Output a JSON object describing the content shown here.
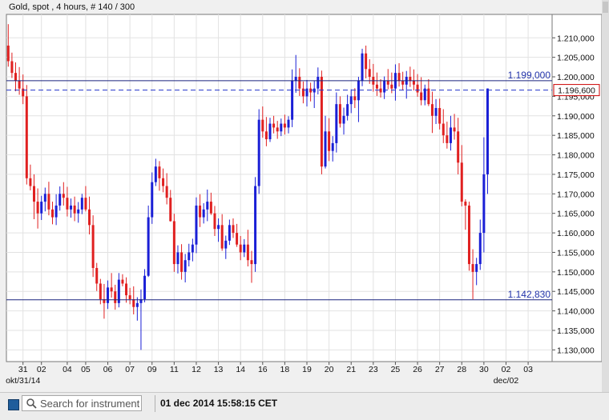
{
  "chart_title": "Gold, spot , 4 hours, # 140 / 300",
  "status_bar": {
    "search_placeholder": "Search for instrument",
    "timestamp": "01 dec 2014 15:58:15 CET"
  },
  "colors": {
    "up": "#1a1fd6",
    "down": "#e02020",
    "hline": "#1a237e",
    "bid_line": "#2233cc",
    "price_box": "#cc0000"
  },
  "chart_data": {
    "type": "candlestick",
    "title": "Gold, spot , 4 hours, # 140 / 300",
    "ylim": [
      1127,
      1216
    ],
    "y_ticks": [
      1130,
      1135,
      1140,
      1145,
      1150,
      1155,
      1160,
      1165,
      1170,
      1175,
      1180,
      1185,
      1190,
      1195,
      1200,
      1205,
      1210
    ],
    "y_tick_labels": [
      "1.130,000",
      "1.135,000",
      "1.140,000",
      "1.145,000",
      "1.150,000",
      "1.155,000",
      "1.160,000",
      "1.165,000",
      "1.170,000",
      "1.175,000",
      "1.180,000",
      "1.185,000",
      "1.190,000",
      "1.195,000",
      "1.200,000",
      "1.205,000",
      "1.210,000"
    ],
    "x_labels": [
      {
        "label": "31",
        "sub": "okt/31/14",
        "bar": 4
      },
      {
        "label": "02",
        "bar": 9
      },
      {
        "label": "04",
        "bar": 16
      },
      {
        "label": "05",
        "bar": 21
      },
      {
        "label": "06",
        "bar": 27
      },
      {
        "label": "07",
        "bar": 33
      },
      {
        "label": "09",
        "bar": 39
      },
      {
        "label": "11",
        "bar": 45
      },
      {
        "label": "12",
        "bar": 51
      },
      {
        "label": "13",
        "bar": 57
      },
      {
        "label": "14",
        "bar": 63
      },
      {
        "label": "16",
        "bar": 69
      },
      {
        "label": "18",
        "bar": 75
      },
      {
        "label": "19",
        "bar": 81
      },
      {
        "label": "20",
        "bar": 87
      },
      {
        "label": "21",
        "bar": 93
      },
      {
        "label": "23",
        "bar": 99
      },
      {
        "label": "25",
        "bar": 105
      },
      {
        "label": "26",
        "bar": 111
      },
      {
        "label": "27",
        "bar": 117
      },
      {
        "label": "28",
        "bar": 123
      },
      {
        "label": "30",
        "bar": 129
      },
      {
        "label": "02",
        "sub": "dec/02",
        "bar": 135
      },
      {
        "label": "03",
        "bar": 141
      }
    ],
    "bars_visible": 148,
    "candles": [
      [
        1208,
        1213.5,
        1202.6,
        1204
      ],
      [
        1204,
        1206.2,
        1199.7,
        1201
      ],
      [
        1201,
        1203.7,
        1196.3,
        1199
      ],
      [
        1199,
        1202.5,
        1195.4,
        1197
      ],
      [
        1197,
        1200.6,
        1193.0,
        1195
      ],
      [
        1195,
        1197.9,
        1172.4,
        1174
      ],
      [
        1174,
        1177.5,
        1170.9,
        1172
      ],
      [
        1172,
        1175.0,
        1163.5,
        1168
      ],
      [
        1168,
        1171.4,
        1161.1,
        1165
      ],
      [
        1165,
        1169.5,
        1163.3,
        1168
      ],
      [
        1168,
        1171.6,
        1165.5,
        1170
      ],
      [
        1170,
        1173.1,
        1164.5,
        1166
      ],
      [
        1166,
        1168.0,
        1162.2,
        1164
      ],
      [
        1164,
        1169.9,
        1162.0,
        1167
      ],
      [
        1167,
        1171.9,
        1165.7,
        1170
      ],
      [
        1170,
        1173.0,
        1167.0,
        1169
      ],
      [
        1169,
        1171.8,
        1164.2,
        1166
      ],
      [
        1166,
        1168.8,
        1163.9,
        1167
      ],
      [
        1167,
        1169.3,
        1163.0,
        1165
      ],
      [
        1165,
        1167.9,
        1162.6,
        1166
      ],
      [
        1166,
        1170.0,
        1164.8,
        1169
      ],
      [
        1169,
        1172.0,
        1165.5,
        1166
      ],
      [
        1166,
        1169.3,
        1159.6,
        1162
      ],
      [
        1162,
        1164.5,
        1148.7,
        1151
      ],
      [
        1151,
        1152.3,
        1145.1,
        1147
      ],
      [
        1147,
        1148.2,
        1141.7,
        1143
      ],
      [
        1143,
        1146.9,
        1138.0,
        1142
      ],
      [
        1142,
        1147.8,
        1140.5,
        1146
      ],
      [
        1146,
        1149.7,
        1143.4,
        1145
      ],
      [
        1145,
        1146.7,
        1140.3,
        1142
      ],
      [
        1142,
        1149.7,
        1140.9,
        1148
      ],
      [
        1148,
        1149.4,
        1146.3,
        1147
      ],
      [
        1147,
        1148.6,
        1142.1,
        1144
      ],
      [
        1144,
        1145.9,
        1141.7,
        1143
      ],
      [
        1143,
        1146.3,
        1139.1,
        1141
      ],
      [
        1141,
        1143.5,
        1137.5,
        1142
      ],
      [
        1142,
        1145.5,
        1130.0,
        1143
      ],
      [
        1143,
        1150.7,
        1142.2,
        1149
      ],
      [
        1149,
        1167.0,
        1148.7,
        1164
      ],
      [
        1164,
        1175.5,
        1162.3,
        1173
      ],
      [
        1173,
        1179.0,
        1172.0,
        1177
      ],
      [
        1177,
        1178.4,
        1170.8,
        1174
      ],
      [
        1174,
        1176.5,
        1170.4,
        1172
      ],
      [
        1172,
        1175.3,
        1167.3,
        1169
      ],
      [
        1169,
        1171.0,
        1162.9,
        1163
      ],
      [
        1163,
        1164.9,
        1150.0,
        1152
      ],
      [
        1152,
        1156.8,
        1149.6,
        1155
      ],
      [
        1155,
        1157.1,
        1148.0,
        1150
      ],
      [
        1150,
        1154.6,
        1147.3,
        1153
      ],
      [
        1153,
        1157.2,
        1151.4,
        1155
      ],
      [
        1155,
        1158.5,
        1152.7,
        1157
      ],
      [
        1157,
        1169.1,
        1154.8,
        1167
      ],
      [
        1167,
        1169.9,
        1161.5,
        1164
      ],
      [
        1164,
        1167.6,
        1162.4,
        1166
      ],
      [
        1166,
        1171.1,
        1163.0,
        1168
      ],
      [
        1168,
        1170.3,
        1164.6,
        1165
      ],
      [
        1165,
        1166.9,
        1159.2,
        1161
      ],
      [
        1161,
        1163.7,
        1157.7,
        1162
      ],
      [
        1162,
        1164.8,
        1155.4,
        1156
      ],
      [
        1156,
        1159.3,
        1153.3,
        1158
      ],
      [
        1158,
        1163.4,
        1156.9,
        1162
      ],
      [
        1162,
        1163.7,
        1158.7,
        1160
      ],
      [
        1160,
        1162.3,
        1156.4,
        1157
      ],
      [
        1157,
        1159.2,
        1153.0,
        1155
      ],
      [
        1155,
        1158.4,
        1153.8,
        1157
      ],
      [
        1157,
        1160.8,
        1151.4,
        1153
      ],
      [
        1153,
        1155.4,
        1147.2,
        1152
      ],
      [
        1152,
        1174.3,
        1150.0,
        1172
      ],
      [
        1172,
        1191.7,
        1170.0,
        1189
      ],
      [
        1189,
        1192.4,
        1184.4,
        1186
      ],
      [
        1186,
        1189.7,
        1182.2,
        1184
      ],
      [
        1184,
        1189.5,
        1183.3,
        1188
      ],
      [
        1188,
        1190.0,
        1185.5,
        1187
      ],
      [
        1187,
        1188.7,
        1184.1,
        1186
      ],
      [
        1186,
        1189.3,
        1184.8,
        1188
      ],
      [
        1188,
        1190.3,
        1185.2,
        1187
      ],
      [
        1187,
        1189.9,
        1185.5,
        1189
      ],
      [
        1189,
        1201.9,
        1187.1,
        1199
      ],
      [
        1199,
        1205.6,
        1195.9,
        1200
      ],
      [
        1200,
        1202.2,
        1195.1,
        1197
      ],
      [
        1197,
        1198.8,
        1193.2,
        1195
      ],
      [
        1195,
        1199.2,
        1192.4,
        1197
      ],
      [
        1197,
        1198.5,
        1193.7,
        1196
      ],
      [
        1196,
        1199.0,
        1192.0,
        1197
      ],
      [
        1197,
        1202.4,
        1195.5,
        1200
      ],
      [
        1200,
        1201.6,
        1175.0,
        1177
      ],
      [
        1177,
        1190.0,
        1176.5,
        1186
      ],
      [
        1186,
        1189.4,
        1178.4,
        1181
      ],
      [
        1181,
        1184.8,
        1178.3,
        1183
      ],
      [
        1183,
        1196.0,
        1180.6,
        1193
      ],
      [
        1193,
        1195.0,
        1187.0,
        1188
      ],
      [
        1188,
        1192.1,
        1185.2,
        1190
      ],
      [
        1190,
        1195.4,
        1188.8,
        1193
      ],
      [
        1193,
        1196.8,
        1190.7,
        1195
      ],
      [
        1195,
        1197.1,
        1192.0,
        1194
      ],
      [
        1194,
        1200.0,
        1188.4,
        1199
      ],
      [
        1199,
        1207.2,
        1197.6,
        1206
      ],
      [
        1206,
        1208.0,
        1199.6,
        1202
      ],
      [
        1202,
        1204.5,
        1198.2,
        1200
      ],
      [
        1200,
        1203.3,
        1196.2,
        1198
      ],
      [
        1198,
        1201.1,
        1195.1,
        1197
      ],
      [
        1197,
        1199.4,
        1194.7,
        1196
      ],
      [
        1196,
        1200.1,
        1194.3,
        1199
      ],
      [
        1199,
        1202.0,
        1196.8,
        1198
      ],
      [
        1198,
        1201.1,
        1195.8,
        1197
      ],
      [
        1197,
        1203.2,
        1193.9,
        1201
      ],
      [
        1201,
        1203.5,
        1197.5,
        1199
      ],
      [
        1199,
        1201.3,
        1196.6,
        1198
      ],
      [
        1198,
        1201.5,
        1194.4,
        1200
      ],
      [
        1200,
        1202.6,
        1197.4,
        1199
      ],
      [
        1199,
        1201.9,
        1196.5,
        1198
      ],
      [
        1198,
        1200.7,
        1194.9,
        1196
      ],
      [
        1196,
        1199.9,
        1192.7,
        1194
      ],
      [
        1194,
        1198.0,
        1192.7,
        1197
      ],
      [
        1197,
        1199.4,
        1192.5,
        1193
      ],
      [
        1193,
        1196.2,
        1185.6,
        1190
      ],
      [
        1190,
        1194.3,
        1187.9,
        1192
      ],
      [
        1192,
        1194.4,
        1186.5,
        1188
      ],
      [
        1188,
        1191.7,
        1183.0,
        1185
      ],
      [
        1185,
        1188.5,
        1181.6,
        1183
      ],
      [
        1183,
        1190.0,
        1181.1,
        1187
      ],
      [
        1187,
        1190.5,
        1183.9,
        1186
      ],
      [
        1186,
        1189.5,
        1175.0,
        1178
      ],
      [
        1178,
        1182.5,
        1166.8,
        1168
      ],
      [
        1168,
        1168.6,
        1160.8,
        1167
      ],
      [
        1167,
        1168.0,
        1150.3,
        1152
      ],
      [
        1152,
        1155.8,
        1143.0,
        1150
      ],
      [
        1150,
        1153.6,
        1146.6,
        1152
      ],
      [
        1152,
        1163.4,
        1150.5,
        1160
      ],
      [
        1160,
        1184.5,
        1155.0,
        1175
      ],
      [
        1175,
        1197.0,
        1170.0,
        1197
      ]
    ],
    "hlines": [
      {
        "value": 1199.0,
        "label": "1.199,000",
        "start_bar": 0
      },
      {
        "value": 1142.83,
        "label": "1.142,830",
        "start_bar": 0
      }
    ],
    "bid_line": {
      "value": 1196.6,
      "label": "1.196,600"
    },
    "grid": true
  }
}
